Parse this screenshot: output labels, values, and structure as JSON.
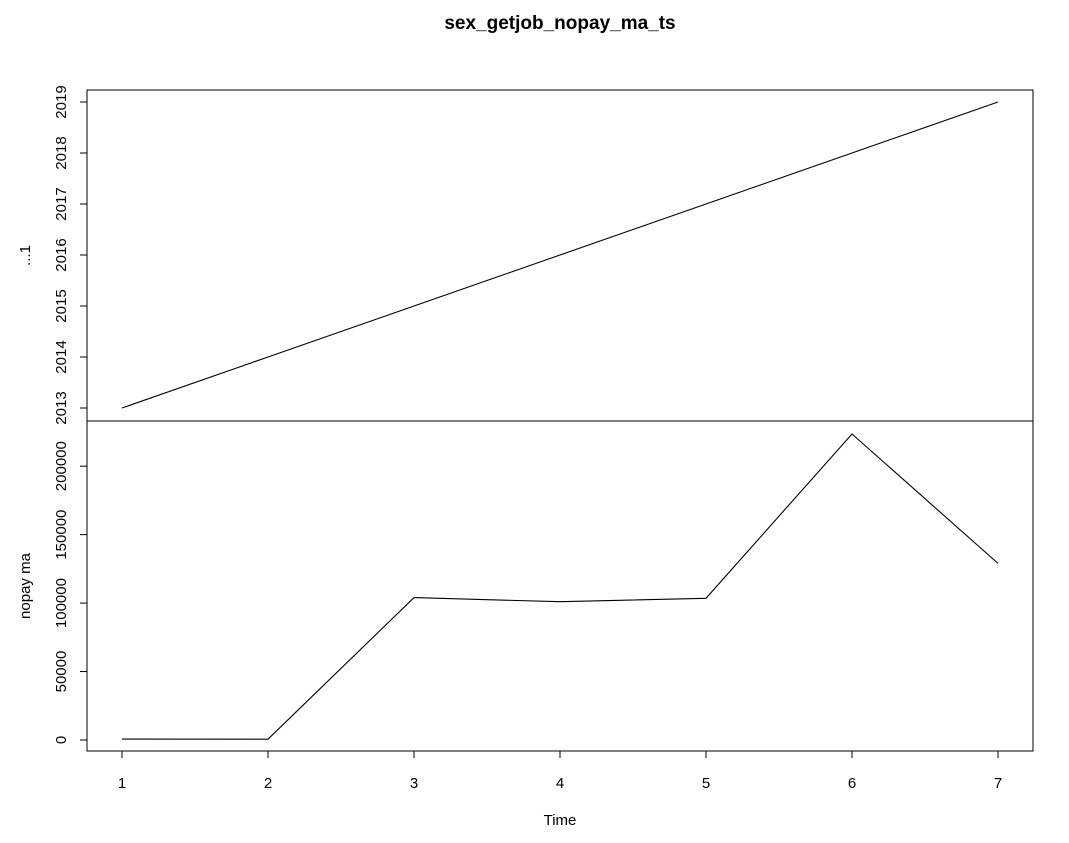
{
  "chart_data": {
    "type": "line",
    "title": "sex_getjob_nopay_ma_ts",
    "xlabel": "Time",
    "x": [
      1,
      2,
      3,
      4,
      5,
      6,
      7
    ],
    "xlim": [
      1,
      7
    ],
    "x_ticks": [
      1,
      2,
      3,
      4,
      5,
      6,
      7
    ],
    "grid": false,
    "panels": [
      {
        "ylabel": "...1",
        "ylim": [
          2013,
          2019
        ],
        "y_ticks": [
          2013,
          2014,
          2015,
          2016,
          2017,
          2018,
          2019
        ],
        "values": [
          2013,
          2014,
          2015,
          2016,
          2017,
          2018,
          2019
        ]
      },
      {
        "ylabel": "nopay ma",
        "ylim": [
          0,
          223500
        ],
        "y_ticks": [
          0,
          50000,
          100000,
          150000,
          200000
        ],
        "values": [
          700,
          600,
          104000,
          101000,
          103500,
          223500,
          129000
        ]
      }
    ]
  }
}
